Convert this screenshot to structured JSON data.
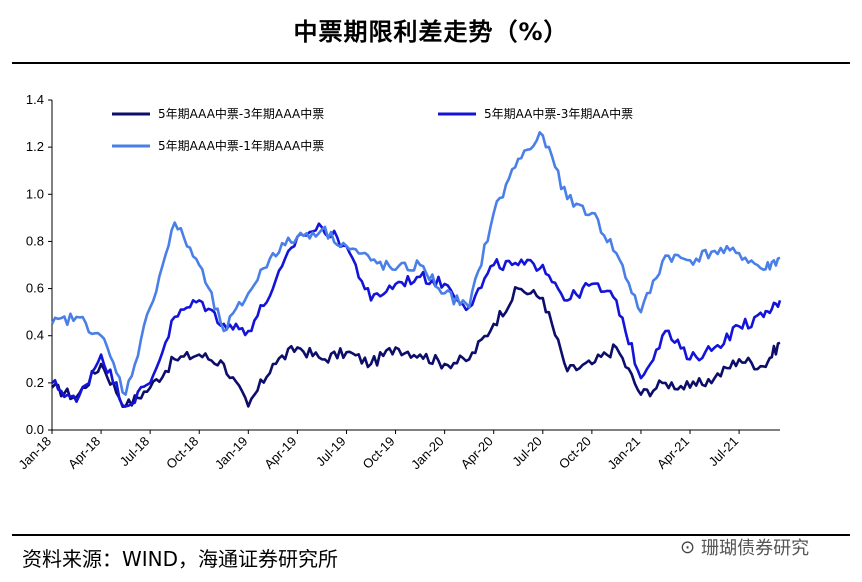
{
  "title": "中票期限利差走势（%）",
  "source": "资料来源：WIND，海通证券研究所",
  "watermark": "珊瑚债券研究",
  "chart_data": {
    "type": "line",
    "title": "中票期限利差走势（%）",
    "xlabel": "",
    "ylabel": "",
    "ylim": [
      0.0,
      1.4
    ],
    "yticks": [
      "0.0",
      "0.2",
      "0.4",
      "0.6",
      "0.8",
      "1.0",
      "1.2",
      "1.4"
    ],
    "categories": [
      "Jan-18",
      "Apr-18",
      "Jul-18",
      "Oct-18",
      "Jan-19",
      "Apr-19",
      "Jul-19",
      "Oct-19",
      "Jan-20",
      "Apr-20",
      "Jul-20",
      "Oct-20",
      "Jan-21",
      "Apr-21",
      "Jul-21"
    ],
    "x": [
      0,
      1.5,
      3,
      4.5,
      6,
      7.5,
      9,
      10.5,
      12,
      13.5,
      15,
      16.5,
      18,
      19.5,
      21,
      22.5,
      24,
      25.5,
      27,
      28.5,
      30,
      31.5,
      33,
      34.5,
      36,
      37.5,
      39,
      40.5,
      42,
      43.5,
      44.5
    ],
    "series": [
      {
        "name": "5年期AAA中票-3年期AAA中票",
        "color": "#0d0d6b",
        "values": [
          0.18,
          0.14,
          0.28,
          0.1,
          0.18,
          0.3,
          0.32,
          0.28,
          0.1,
          0.28,
          0.35,
          0.3,
          0.33,
          0.28,
          0.35,
          0.32,
          0.28,
          0.3,
          0.45,
          0.6,
          0.56,
          0.25,
          0.28,
          0.35,
          0.15,
          0.2,
          0.18,
          0.22,
          0.3,
          0.27,
          0.37
        ]
      },
      {
        "name": "5年期AA中票-3年期AA中票",
        "color": "#1414d8",
        "values": [
          0.2,
          0.12,
          0.32,
          0.1,
          0.2,
          0.48,
          0.55,
          0.45,
          0.42,
          0.6,
          0.82,
          0.86,
          0.78,
          0.55,
          0.62,
          0.65,
          0.62,
          0.52,
          0.7,
          0.7,
          0.7,
          0.55,
          0.62,
          0.55,
          0.22,
          0.42,
          0.3,
          0.35,
          0.44,
          0.48,
          0.55
        ]
      },
      {
        "name": "5年期AAA中票-1年期AAA中票",
        "color": "#4a7fe8",
        "values": [
          0.45,
          0.48,
          0.4,
          0.15,
          0.52,
          0.88,
          0.7,
          0.42,
          0.58,
          0.75,
          0.82,
          0.85,
          0.78,
          0.72,
          0.68,
          0.7,
          0.58,
          0.52,
          0.92,
          1.15,
          1.25,
          0.98,
          0.92,
          0.75,
          0.5,
          0.74,
          0.72,
          0.76,
          0.75,
          0.68,
          0.73
        ]
      }
    ],
    "legend": "top"
  }
}
